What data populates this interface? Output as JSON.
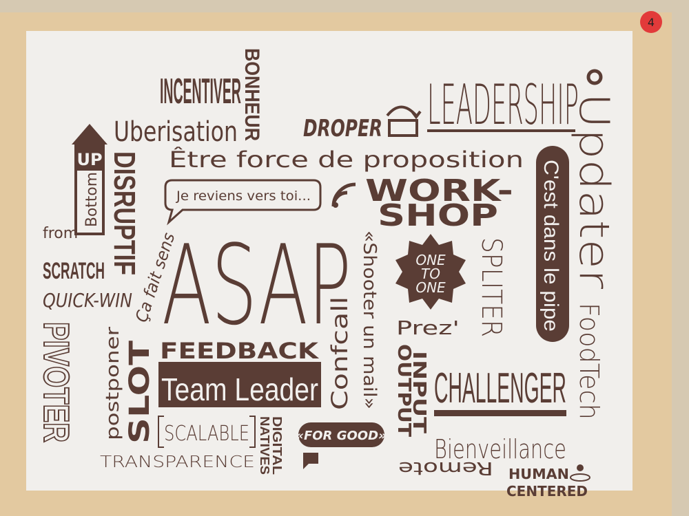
{
  "sticker": "4",
  "words": [
    "INCENTIVER",
    "BONHEUR",
    "Uberisation",
    "DROPER",
    "LEADERSHIP",
    "Updater",
    "UP",
    "Bottom",
    "DISRUPTIF",
    "Être force de proposition",
    "Je reviens vers toi...",
    "WORK-",
    "SHOP",
    "C'est dans le pipe",
    "from",
    "SCRATCH",
    "ASAP",
    "Ça fait sens",
    "«Shooter un mail»",
    "ONE",
    "TO",
    "ONE",
    "SPLITER",
    "QUICK-WIN",
    "FoodTech",
    "Prez'",
    "PIVOTER",
    "postponer",
    "SLOT",
    "FEEDBACK",
    "Team Leader",
    "Confcall",
    "OUTPUT",
    "INPUT",
    "CHALLENGER",
    "SCALABLE",
    "DIGITAL",
    "NATIVES",
    "«FOR GOOD»",
    "Bienveillance",
    "TRANSPARENCE",
    "Remote",
    "HUMAN",
    "CENTERED"
  ]
}
